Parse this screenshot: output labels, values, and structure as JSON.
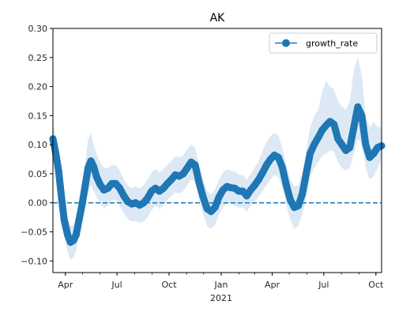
{
  "chart_data": {
    "type": "line",
    "title": "AK",
    "xlabel": "",
    "ylabel": "",
    "x_tick_labels": [
      "Apr",
      "Jul",
      "Oct",
      "Jan",
      "Apr",
      "Jul",
      "Oct"
    ],
    "x_ticks": [
      "2020-04-01",
      "2020-07-01",
      "2020-10-01",
      "2021-01-01",
      "2021-04-01",
      "2021-07-01",
      "2021-10-01"
    ],
    "x_secondary_label": "2021",
    "xlim": [
      "2020-03-10",
      "2021-10-11"
    ],
    "ylim": [
      -0.12,
      0.3
    ],
    "y_ticks": [
      -0.1,
      -0.05,
      0.0,
      0.05,
      0.1,
      0.15,
      0.2,
      0.25,
      0.3
    ],
    "y_tick_labels": [
      "−0.10",
      "−0.05",
      "0.00",
      "0.05",
      "0.10",
      "0.15",
      "0.20",
      "0.25",
      "0.30"
    ],
    "reference_line": {
      "y": 0.0,
      "style": "dashed",
      "color": "#1f77b4"
    },
    "legend": {
      "position": "top-right",
      "entries": [
        "growth_rate"
      ]
    },
    "grid": false,
    "series": [
      {
        "name": "growth_rate",
        "color": "#1f77b4",
        "marker": "circle",
        "band_color": "#dce9f5",
        "points": [
          {
            "x": "2020-03-10",
            "y": 0.11,
            "lo": 0.085,
            "hi": 0.14
          },
          {
            "x": "2020-03-15",
            "y": 0.085,
            "lo": 0.055,
            "hi": 0.115
          },
          {
            "x": "2020-03-20",
            "y": 0.055,
            "lo": 0.025,
            "hi": 0.085
          },
          {
            "x": "2020-03-25",
            "y": 0.01,
            "lo": -0.02,
            "hi": 0.04
          },
          {
            "x": "2020-03-30",
            "y": -0.03,
            "lo": -0.06,
            "hi": 0.0
          },
          {
            "x": "2020-04-05",
            "y": -0.055,
            "lo": -0.085,
            "hi": -0.025
          },
          {
            "x": "2020-04-10",
            "y": -0.068,
            "lo": -0.098,
            "hi": -0.04
          },
          {
            "x": "2020-04-15",
            "y": -0.065,
            "lo": -0.095,
            "hi": -0.038
          },
          {
            "x": "2020-04-20",
            "y": -0.055,
            "lo": -0.082,
            "hi": -0.025
          },
          {
            "x": "2020-04-25",
            "y": -0.03,
            "lo": -0.058,
            "hi": 0.0
          },
          {
            "x": "2020-05-01",
            "y": 0.0,
            "lo": -0.03,
            "hi": 0.035
          },
          {
            "x": "2020-05-06",
            "y": 0.03,
            "lo": -0.005,
            "hi": 0.07
          },
          {
            "x": "2020-05-11",
            "y": 0.06,
            "lo": 0.02,
            "hi": 0.11
          },
          {
            "x": "2020-05-16",
            "y": 0.072,
            "lo": 0.03,
            "hi": 0.12
          },
          {
            "x": "2020-05-21",
            "y": 0.062,
            "lo": 0.02,
            "hi": 0.1
          },
          {
            "x": "2020-05-26",
            "y": 0.045,
            "lo": 0.01,
            "hi": 0.085
          },
          {
            "x": "2020-06-01",
            "y": 0.032,
            "lo": 0.0,
            "hi": 0.07
          },
          {
            "x": "2020-06-08",
            "y": 0.022,
            "lo": -0.01,
            "hi": 0.06
          },
          {
            "x": "2020-06-15",
            "y": 0.025,
            "lo": -0.005,
            "hi": 0.06
          },
          {
            "x": "2020-06-22",
            "y": 0.033,
            "lo": 0.005,
            "hi": 0.065
          },
          {
            "x": "2020-06-29",
            "y": 0.033,
            "lo": 0.005,
            "hi": 0.065
          },
          {
            "x": "2020-07-06",
            "y": 0.025,
            "lo": -0.005,
            "hi": 0.055
          },
          {
            "x": "2020-07-13",
            "y": 0.012,
            "lo": -0.018,
            "hi": 0.04
          },
          {
            "x": "2020-07-20",
            "y": 0.002,
            "lo": -0.028,
            "hi": 0.03
          },
          {
            "x": "2020-07-27",
            "y": -0.002,
            "lo": -0.032,
            "hi": 0.025
          },
          {
            "x": "2020-08-03",
            "y": 0.0,
            "lo": -0.032,
            "hi": 0.028
          },
          {
            "x": "2020-08-10",
            "y": -0.004,
            "lo": -0.035,
            "hi": 0.025
          },
          {
            "x": "2020-08-17",
            "y": 0.0,
            "lo": -0.032,
            "hi": 0.03
          },
          {
            "x": "2020-08-24",
            "y": 0.008,
            "lo": -0.025,
            "hi": 0.04
          },
          {
            "x": "2020-08-31",
            "y": 0.02,
            "lo": -0.012,
            "hi": 0.052
          },
          {
            "x": "2020-09-07",
            "y": 0.025,
            "lo": -0.005,
            "hi": 0.058
          },
          {
            "x": "2020-09-14",
            "y": 0.02,
            "lo": -0.01,
            "hi": 0.052
          },
          {
            "x": "2020-09-21",
            "y": 0.025,
            "lo": -0.005,
            "hi": 0.058
          },
          {
            "x": "2020-09-28",
            "y": 0.033,
            "lo": 0.005,
            "hi": 0.065
          },
          {
            "x": "2020-10-05",
            "y": 0.04,
            "lo": 0.012,
            "hi": 0.072
          },
          {
            "x": "2020-10-12",
            "y": 0.048,
            "lo": 0.018,
            "hi": 0.08
          },
          {
            "x": "2020-10-19",
            "y": 0.046,
            "lo": 0.016,
            "hi": 0.078
          },
          {
            "x": "2020-10-26",
            "y": 0.05,
            "lo": 0.02,
            "hi": 0.082
          },
          {
            "x": "2020-11-02",
            "y": 0.06,
            "lo": 0.03,
            "hi": 0.092
          },
          {
            "x": "2020-11-09",
            "y": 0.07,
            "lo": 0.04,
            "hi": 0.1
          },
          {
            "x": "2020-11-16",
            "y": 0.065,
            "lo": 0.035,
            "hi": 0.095
          },
          {
            "x": "2020-11-23",
            "y": 0.035,
            "lo": 0.005,
            "hi": 0.065
          },
          {
            "x": "2020-11-30",
            "y": 0.01,
            "lo": -0.02,
            "hi": 0.04
          },
          {
            "x": "2020-12-07",
            "y": -0.01,
            "lo": -0.04,
            "hi": 0.02
          },
          {
            "x": "2020-12-14",
            "y": -0.015,
            "lo": -0.045,
            "hi": 0.015
          },
          {
            "x": "2020-12-21",
            "y": -0.008,
            "lo": -0.038,
            "hi": 0.022
          },
          {
            "x": "2020-12-28",
            "y": 0.01,
            "lo": -0.02,
            "hi": 0.04
          },
          {
            "x": "2021-01-04",
            "y": 0.022,
            "lo": -0.008,
            "hi": 0.052
          },
          {
            "x": "2021-01-11",
            "y": 0.028,
            "lo": 0.0,
            "hi": 0.058
          },
          {
            "x": "2021-01-18",
            "y": 0.026,
            "lo": -0.002,
            "hi": 0.055
          },
          {
            "x": "2021-01-25",
            "y": 0.025,
            "lo": -0.004,
            "hi": 0.054
          },
          {
            "x": "2021-02-01",
            "y": 0.02,
            "lo": -0.008,
            "hi": 0.048
          },
          {
            "x": "2021-02-08",
            "y": 0.02,
            "lo": -0.008,
            "hi": 0.048
          },
          {
            "x": "2021-02-15",
            "y": 0.012,
            "lo": -0.015,
            "hi": 0.04
          },
          {
            "x": "2021-02-22",
            "y": 0.022,
            "lo": -0.005,
            "hi": 0.05
          },
          {
            "x": "2021-03-01",
            "y": 0.03,
            "lo": 0.002,
            "hi": 0.06
          },
          {
            "x": "2021-03-08",
            "y": 0.04,
            "lo": 0.01,
            "hi": 0.072
          },
          {
            "x": "2021-03-15",
            "y": 0.052,
            "lo": 0.02,
            "hi": 0.09
          },
          {
            "x": "2021-03-22",
            "y": 0.065,
            "lo": 0.03,
            "hi": 0.105
          },
          {
            "x": "2021-03-29",
            "y": 0.075,
            "lo": 0.04,
            "hi": 0.115
          },
          {
            "x": "2021-04-05",
            "y": 0.082,
            "lo": 0.048,
            "hi": 0.12
          },
          {
            "x": "2021-04-12",
            "y": 0.078,
            "lo": 0.044,
            "hi": 0.115
          },
          {
            "x": "2021-04-19",
            "y": 0.06,
            "lo": 0.025,
            "hi": 0.095
          },
          {
            "x": "2021-04-26",
            "y": 0.03,
            "lo": -0.005,
            "hi": 0.065
          },
          {
            "x": "2021-05-03",
            "y": 0.005,
            "lo": -0.03,
            "hi": 0.04
          },
          {
            "x": "2021-05-10",
            "y": -0.008,
            "lo": -0.045,
            "hi": 0.028
          },
          {
            "x": "2021-05-17",
            "y": -0.005,
            "lo": -0.04,
            "hi": 0.03
          },
          {
            "x": "2021-05-24",
            "y": 0.015,
            "lo": -0.02,
            "hi": 0.05
          },
          {
            "x": "2021-05-31",
            "y": 0.05,
            "lo": 0.01,
            "hi": 0.09
          },
          {
            "x": "2021-06-07",
            "y": 0.085,
            "lo": 0.045,
            "hi": 0.13
          },
          {
            "x": "2021-06-14",
            "y": 0.1,
            "lo": 0.06,
            "hi": 0.15
          },
          {
            "x": "2021-06-21",
            "y": 0.112,
            "lo": 0.07,
            "hi": 0.16
          },
          {
            "x": "2021-06-28",
            "y": 0.125,
            "lo": 0.08,
            "hi": 0.19
          },
          {
            "x": "2021-07-05",
            "y": 0.133,
            "lo": 0.085,
            "hi": 0.21
          },
          {
            "x": "2021-07-12",
            "y": 0.14,
            "lo": 0.09,
            "hi": 0.2
          },
          {
            "x": "2021-07-19",
            "y": 0.135,
            "lo": 0.088,
            "hi": 0.195
          },
          {
            "x": "2021-07-26",
            "y": 0.11,
            "lo": 0.07,
            "hi": 0.175
          },
          {
            "x": "2021-08-02",
            "y": 0.1,
            "lo": 0.06,
            "hi": 0.165
          },
          {
            "x": "2021-08-09",
            "y": 0.09,
            "lo": 0.055,
            "hi": 0.16
          },
          {
            "x": "2021-08-16",
            "y": 0.095,
            "lo": 0.06,
            "hi": 0.175
          },
          {
            "x": "2021-08-23",
            "y": 0.13,
            "lo": 0.085,
            "hi": 0.23
          },
          {
            "x": "2021-08-30",
            "y": 0.165,
            "lo": 0.11,
            "hi": 0.25
          },
          {
            "x": "2021-09-06",
            "y": 0.15,
            "lo": 0.1,
            "hi": 0.22
          },
          {
            "x": "2021-09-13",
            "y": 0.1,
            "lo": 0.06,
            "hi": 0.15
          },
          {
            "x": "2021-09-20",
            "y": 0.078,
            "lo": 0.04,
            "hi": 0.13
          },
          {
            "x": "2021-09-27",
            "y": 0.085,
            "lo": 0.045,
            "hi": 0.14
          },
          {
            "x": "2021-10-04",
            "y": 0.095,
            "lo": 0.06,
            "hi": 0.13
          },
          {
            "x": "2021-10-11",
            "y": 0.098,
            "lo": 0.075,
            "hi": 0.13
          }
        ]
      }
    ]
  }
}
